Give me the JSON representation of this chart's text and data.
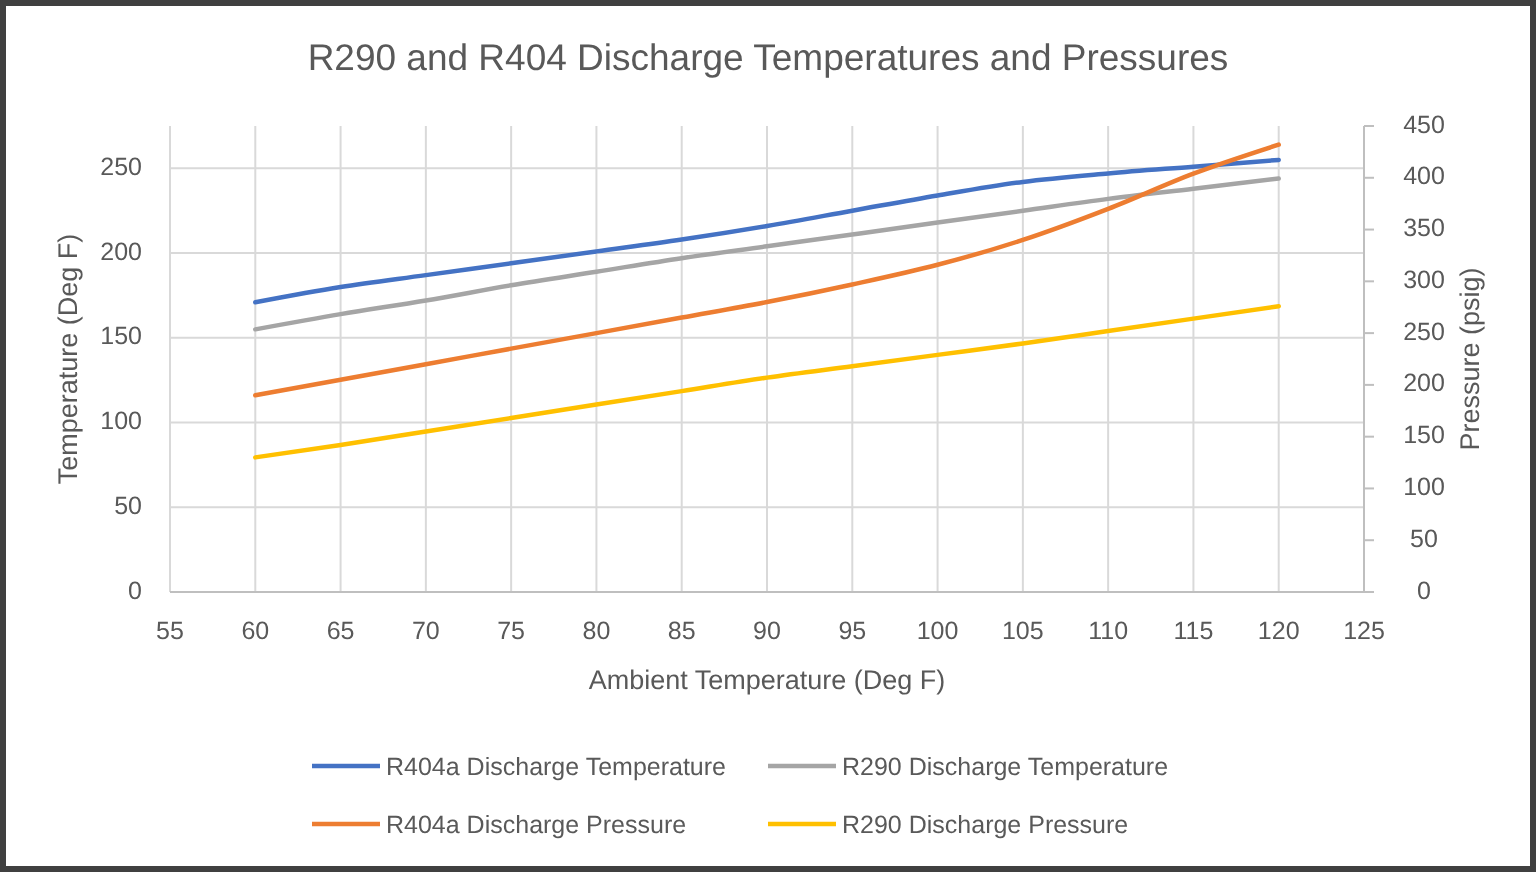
{
  "chart_data": {
    "type": "line",
    "title": "R290 and R404 Discharge Temperatures and Pressures",
    "xlabel": "Ambient Temperature (Deg F)",
    "ylabel": "Temperature (Deg F)",
    "y2label": "Pressure (psig)",
    "x": [
      60,
      65,
      70,
      75,
      80,
      85,
      90,
      95,
      100,
      105,
      110,
      115,
      120
    ],
    "xlim": [
      55,
      125
    ],
    "xticks": [
      55,
      60,
      65,
      70,
      75,
      80,
      85,
      90,
      95,
      100,
      105,
      110,
      115,
      120,
      125
    ],
    "ylim": [
      0,
      275
    ],
    "yticks": [
      0,
      50,
      100,
      150,
      200,
      250
    ],
    "y2lim": [
      0,
      450
    ],
    "y2ticks": [
      0,
      50,
      100,
      150,
      200,
      250,
      300,
      350,
      400,
      450
    ],
    "grid": true,
    "legend": "bottom",
    "series": [
      {
        "name": "R404a Discharge Temperature",
        "color": "#4472c4",
        "values": [
          171,
          180,
          187,
          194,
          201,
          208,
          216,
          225,
          234,
          242,
          247,
          251,
          255
        ]
      },
      {
        "name": "R290 Discharge Temperature",
        "color": "#a5a5a5",
        "values": [
          155,
          164,
          172,
          181,
          189,
          197,
          204,
          211,
          218,
          225,
          232,
          238,
          244
        ]
      },
      {
        "name": "R404a Discharge Pressure",
        "color": "#ed7d31",
        "axis": "y2",
        "values": [
          190,
          205,
          220,
          235,
          250,
          265,
          280,
          297,
          316,
          340,
          370,
          404,
          432
        ]
      },
      {
        "name": "R290 Discharge Pressure",
        "color": "#ffc000",
        "axis": "y2",
        "values": [
          130,
          142,
          155,
          168,
          181,
          194,
          207,
          218,
          229,
          240,
          252,
          264,
          276
        ]
      }
    ]
  }
}
